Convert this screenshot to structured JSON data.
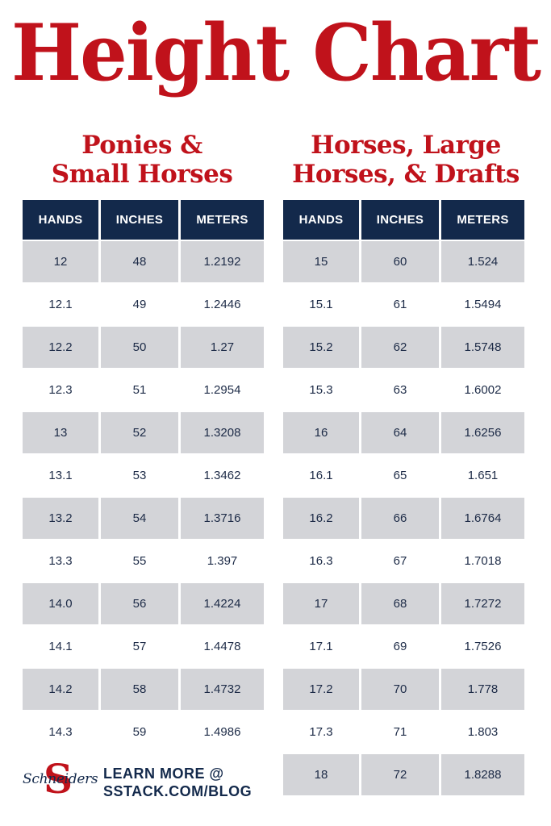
{
  "title": "Height Chart",
  "sections": [
    {
      "title_lines": [
        "Ponies &",
        "Small Horses"
      ],
      "headers": [
        "HANDS",
        "INCHES",
        "METERS"
      ],
      "rows": [
        [
          "12",
          "48",
          "1.2192"
        ],
        [
          "12.1",
          "49",
          "1.2446"
        ],
        [
          "12.2",
          "50",
          "1.27"
        ],
        [
          "12.3",
          "51",
          "1.2954"
        ],
        [
          "13",
          "52",
          "1.3208"
        ],
        [
          "13.1",
          "53",
          "1.3462"
        ],
        [
          "13.2",
          "54",
          "1.3716"
        ],
        [
          "13.3",
          "55",
          "1.397"
        ],
        [
          "14.0",
          "56",
          "1.4224"
        ],
        [
          "14.1",
          "57",
          "1.4478"
        ],
        [
          "14.2",
          "58",
          "1.4732"
        ],
        [
          "14.3",
          "59",
          "1.4986"
        ]
      ]
    },
    {
      "title_lines": [
        "Horses, Large",
        "Horses, & Drafts"
      ],
      "headers": [
        "HANDS",
        "INCHES",
        "METERS"
      ],
      "rows": [
        [
          "15",
          "60",
          "1.524"
        ],
        [
          "15.1",
          "61",
          "1.5494"
        ],
        [
          "15.2",
          "62",
          "1.5748"
        ],
        [
          "15.3",
          "63",
          "1.6002"
        ],
        [
          "16",
          "64",
          "1.6256"
        ],
        [
          "16.1",
          "65",
          "1.651"
        ],
        [
          "16.2",
          "66",
          "1.6764"
        ],
        [
          "16.3",
          "67",
          "1.7018"
        ],
        [
          "17",
          "68",
          "1.7272"
        ],
        [
          "17.1",
          "69",
          "1.7526"
        ],
        [
          "17.2",
          "70",
          "1.778"
        ],
        [
          "17.3",
          "71",
          "1.803"
        ],
        [
          "18",
          "72",
          "1.8288"
        ]
      ]
    }
  ],
  "footer": {
    "logo_letter": "S",
    "logo_script": "Schneiders",
    "cta_line1": "LEARN MORE @",
    "cta_line2": "SSTACK.COM/BLOG"
  },
  "colors": {
    "accent_red": "#c0121b",
    "header_navy": "#13294b",
    "row_shade": "#d3d4d8",
    "text": "#1d2b47"
  }
}
